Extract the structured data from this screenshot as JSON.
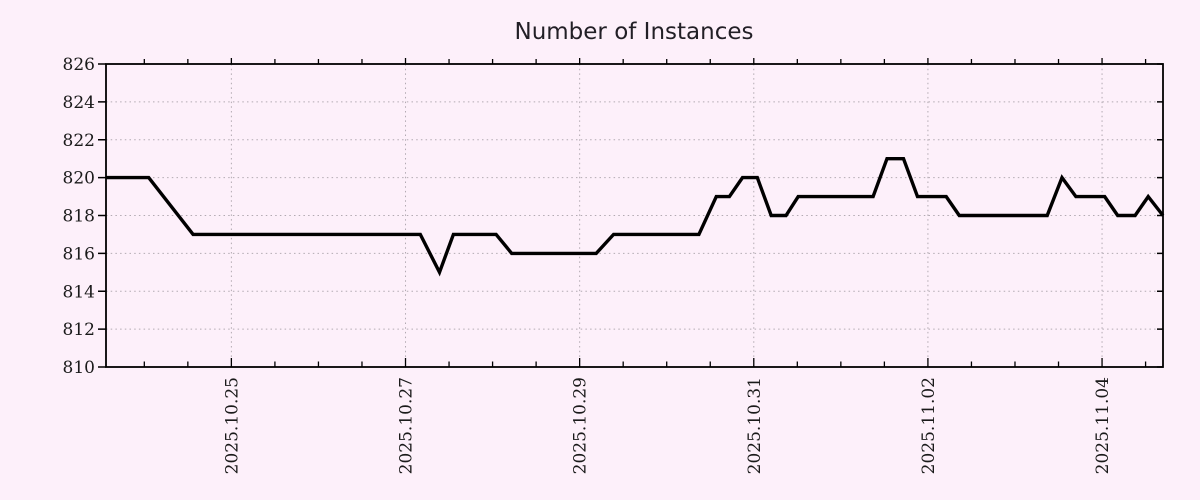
{
  "colors": {
    "background": "#fdf0fa",
    "grid": "#b2aab2",
    "axis": "#000000",
    "text": "#1a1a1a",
    "line": "#000000"
  },
  "chart_data": {
    "type": "line",
    "title": "Number of Instances",
    "legend": "none",
    "grid": "dotted at major ticks",
    "x_axis": {
      "unit": "days since 2025-10-23 00:00",
      "xlim": [
        0.56,
        12.7
      ],
      "major_ticks": [
        {
          "t": 2,
          "label": "2025.10.25"
        },
        {
          "t": 4,
          "label": "2025.10.27"
        },
        {
          "t": 6,
          "label": "2025.10.29"
        },
        {
          "t": 8,
          "label": "2025.10.31"
        },
        {
          "t": 10,
          "label": "2025.11.02"
        },
        {
          "t": 12,
          "label": "2025.11.04"
        }
      ],
      "minor_tick_start": 1.0,
      "minor_tick_end": 12.5,
      "minor_tick_step": 0.5
    },
    "y_axis": {
      "ylim": [
        810,
        826
      ],
      "ticks": [
        810,
        812,
        814,
        816,
        818,
        820,
        822,
        824,
        826
      ]
    },
    "series": [
      {
        "name": "instances",
        "color": "#000000",
        "points": [
          [
            0.56,
            820
          ],
          [
            1.05,
            820
          ],
          [
            1.56,
            817
          ],
          [
            4.17,
            817
          ],
          [
            4.39,
            815
          ],
          [
            4.55,
            817
          ],
          [
            5.04,
            817
          ],
          [
            5.22,
            816
          ],
          [
            6.19,
            816
          ],
          [
            6.39,
            817
          ],
          [
            7.37,
            817
          ],
          [
            7.57,
            819
          ],
          [
            7.72,
            819
          ],
          [
            7.87,
            820
          ],
          [
            8.04,
            820
          ],
          [
            8.2,
            818
          ],
          [
            8.37,
            818
          ],
          [
            8.51,
            819
          ],
          [
            9.37,
            819
          ],
          [
            9.53,
            821
          ],
          [
            9.72,
            821
          ],
          [
            9.88,
            819
          ],
          [
            10.21,
            819
          ],
          [
            10.36,
            818
          ],
          [
            11.37,
            818
          ],
          [
            11.54,
            820
          ],
          [
            11.7,
            819
          ],
          [
            12.03,
            819
          ],
          [
            12.18,
            818
          ],
          [
            12.38,
            818
          ],
          [
            12.53,
            819
          ],
          [
            12.7,
            818
          ]
        ]
      }
    ]
  }
}
